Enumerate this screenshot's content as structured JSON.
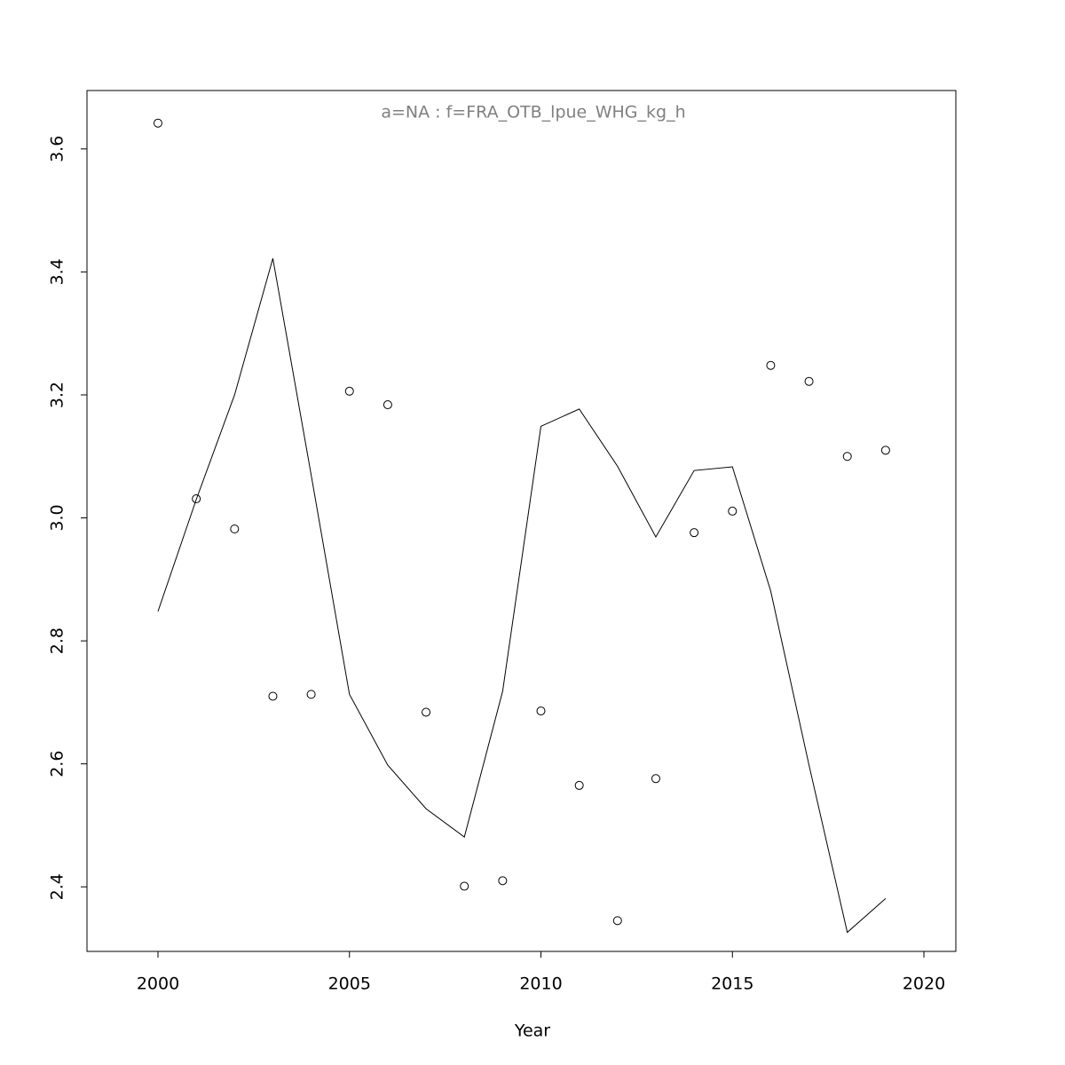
{
  "chart_data": {
    "type": "line",
    "title": "a=NA  :  f=FRA_OTB_lpue_WHG_kg_h",
    "x_label": "Year",
    "x": [
      2000,
      2001,
      2002,
      2003,
      2004,
      2005,
      2006,
      2007,
      2008,
      2009,
      2010,
      2011,
      2012,
      2013,
      2014,
      2015,
      2016,
      2017,
      2018,
      2019
    ],
    "series": [
      {
        "style": "points",
        "color": "#000000",
        "values": [
          3.642,
          3.031,
          2.982,
          2.71,
          2.713,
          3.206,
          3.184,
          2.684,
          2.401,
          2.41,
          2.686,
          2.565,
          2.345,
          2.576,
          2.976,
          3.011,
          3.248,
          3.222,
          3.1,
          3.11
        ]
      },
      {
        "style": "line",
        "color": "#000000",
        "values": [
          2.848,
          3.03,
          3.2,
          3.422,
          3.07,
          2.713,
          2.598,
          2.527,
          2.481,
          2.718,
          3.149,
          3.177,
          3.084,
          2.969,
          3.077,
          3.083,
          2.881,
          2.598,
          2.326,
          2.381
        ]
      }
    ],
    "xlim": [
      1998.146,
      2020.834
    ],
    "ylim": [
      2.295,
      3.695
    ],
    "xticks": [
      2000,
      2005,
      2010,
      2015,
      2020
    ],
    "yticks": [
      2.4,
      2.6,
      2.8,
      {
        "value": 3,
        "label": "3.0"
      },
      3.2,
      3.4,
      3.6
    ]
  }
}
